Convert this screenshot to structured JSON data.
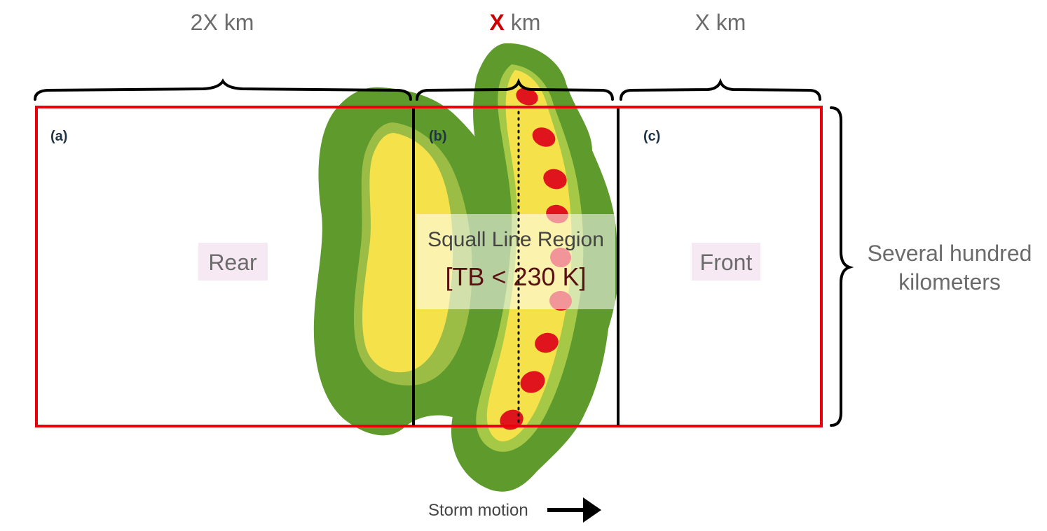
{
  "widths": {
    "rear": "2X km",
    "squall_x": "X",
    "squall_unit": " km",
    "front": "X km"
  },
  "panels": {
    "a": "(a)",
    "b": "(b)",
    "c": "(c)"
  },
  "regions": {
    "rear": "Rear",
    "squall_title": "Squall Line Region",
    "squall_tb": "[TB < 230 K]",
    "front": "Front"
  },
  "side": {
    "line1": "Several hundred",
    "line2": "kilometers"
  },
  "motion": {
    "label": "Storm motion"
  },
  "colors": {
    "outer_cloud": "#5e9a2c",
    "mid_cloud": "#a9c94a",
    "inner_cloud": "#f5e24a",
    "convective_cells": "#e0141c",
    "domain_box": "#e8000b",
    "label_bg": "#f6e9f3"
  }
}
